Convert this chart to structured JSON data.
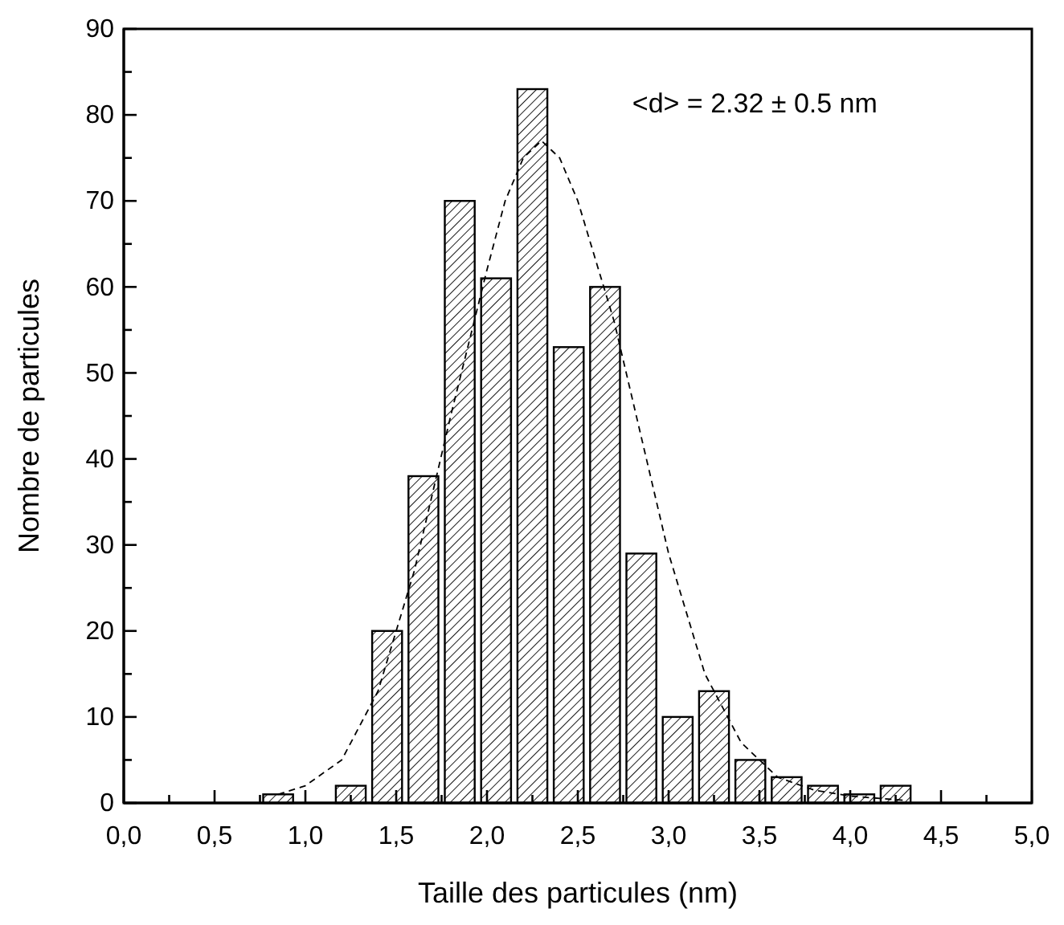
{
  "chart_data": {
    "type": "histogram",
    "xlabel": "Taille des particules (nm)",
    "ylabel": "Nombre de particules",
    "annotations": [
      "<d> = 2.32 ± 0.5 nm"
    ],
    "bins": [
      0.75,
      0.95,
      1.15,
      1.35,
      1.55,
      1.75,
      1.95,
      2.15,
      2.35,
      2.55,
      2.75,
      2.95,
      3.15,
      3.35,
      3.55,
      3.75,
      3.95,
      4.15,
      4.35
    ],
    "series": [
      {
        "color": "#000000",
        "values": [
          1,
          0,
          2,
          20,
          38,
          70,
          61,
          83,
          53,
          60,
          29,
          10,
          13,
          5,
          3,
          2,
          1,
          2
        ]
      },
      {
        "type": "line",
        "color": "#000000",
        "line_style": "dashed",
        "x": [
          0.85,
          1.0,
          1.2,
          1.4,
          1.6,
          1.8,
          2.0,
          2.1,
          2.2,
          2.3,
          2.4,
          2.5,
          2.7,
          2.9,
          3.0,
          3.2,
          3.4,
          3.6,
          3.8,
          4.0,
          4.3
        ],
        "values": [
          1,
          2,
          5,
          13,
          27,
          45,
          62,
          70,
          75,
          77,
          75,
          70,
          56,
          38,
          29,
          15,
          7,
          3,
          1.5,
          0.8,
          0.3
        ]
      }
    ],
    "xlim": [
      0,
      5
    ],
    "xticks": [
      {
        "value": 0,
        "label": "0,0"
      },
      {
        "value": 0.5,
        "label": "0,5"
      },
      {
        "value": 1,
        "label": "1,0"
      },
      {
        "value": 1.5,
        "label": "1,5"
      },
      {
        "value": 2,
        "label": "2,0"
      },
      {
        "value": 2.5,
        "label": "2,5"
      },
      {
        "value": 3,
        "label": "3,0"
      },
      {
        "value": 3.5,
        "label": "3,5"
      },
      {
        "value": 4,
        "label": "4,0"
      },
      {
        "value": 4.5,
        "label": "4,5"
      },
      {
        "value": 5,
        "label": "5,0"
      }
    ],
    "ylim": [
      0,
      90
    ],
    "yticks": [
      0,
      10,
      20,
      30,
      40,
      50,
      60,
      70,
      80,
      90
    ],
    "grid": false
  }
}
